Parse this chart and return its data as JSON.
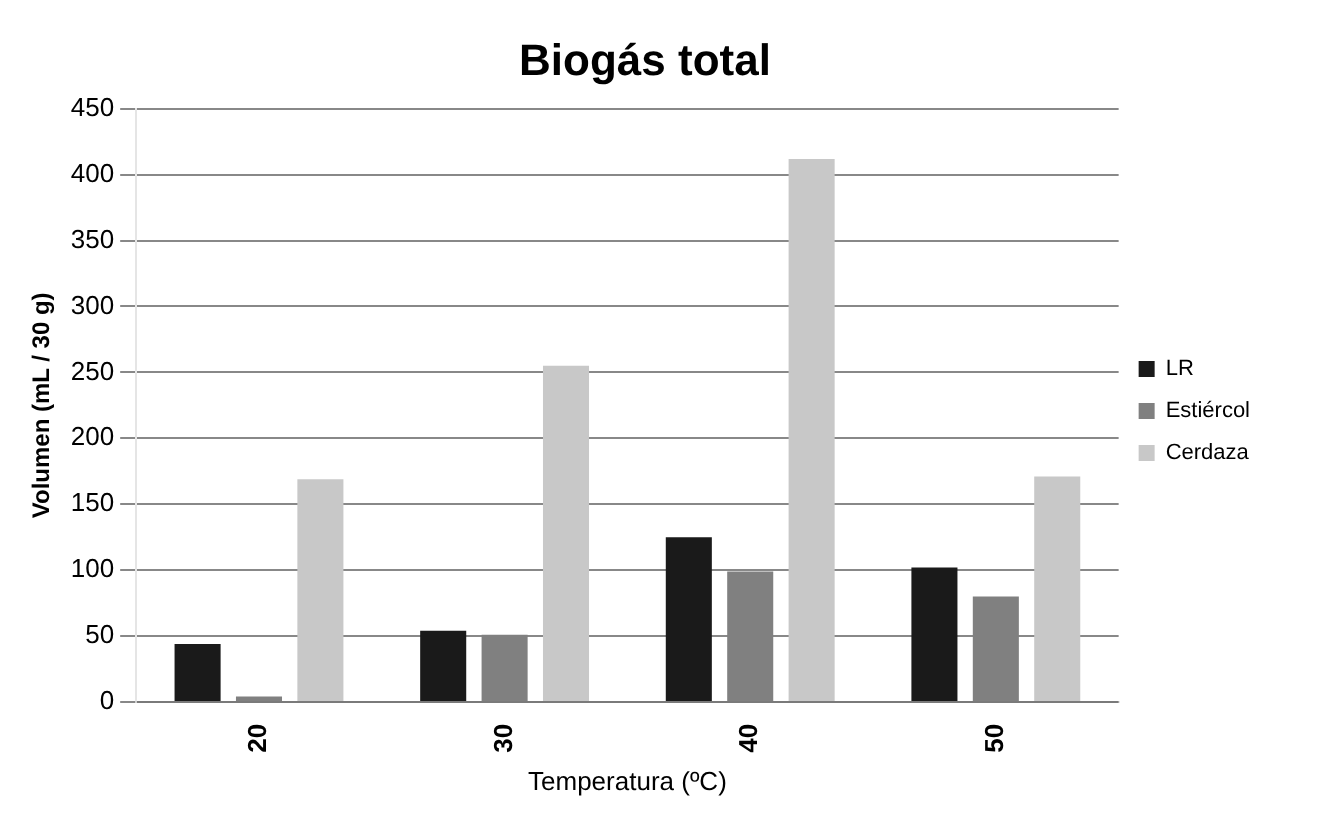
{
  "chart_data": {
    "type": "bar",
    "title": "Biogás total",
    "xlabel": "Temperatura (ºC)",
    "ylabel": "Volumen (mL / 30 g)",
    "categories": [
      "20",
      "30",
      "40",
      "50"
    ],
    "series": [
      {
        "name": "LR",
        "color": "#1a1a1a",
        "values": [
          44,
          54,
          125,
          102
        ]
      },
      {
        "name": "Estiércol",
        "color": "#808080",
        "values": [
          4,
          51,
          99,
          80
        ]
      },
      {
        "name": "Cerdaza",
        "color": "#c8c8c8",
        "values": [
          169,
          255,
          412,
          171
        ]
      }
    ],
    "ylim": [
      0,
      450
    ],
    "yticks": [
      0,
      50,
      100,
      150,
      200,
      250,
      300,
      350,
      400,
      450
    ],
    "grid": "y",
    "legend": "right"
  }
}
